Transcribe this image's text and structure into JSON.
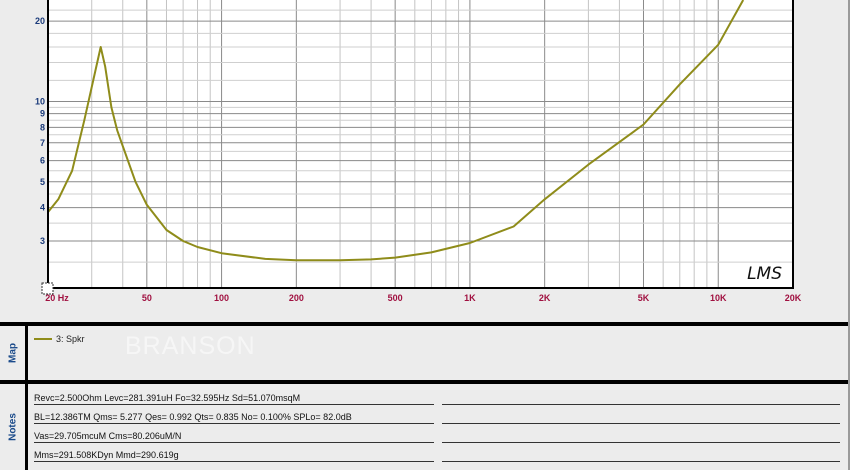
{
  "chart_data": {
    "type": "line",
    "title": "",
    "xlabel": "",
    "ylabel": "",
    "x_scale": "log",
    "y_scale": "log",
    "xlim": [
      20,
      20000
    ],
    "ylim": [
      2,
      24
    ],
    "grid": true,
    "x_ticks": [
      {
        "value": 20,
        "label": "20 Hz"
      },
      {
        "value": 50,
        "label": "50"
      },
      {
        "value": 100,
        "label": "100"
      },
      {
        "value": 200,
        "label": "200"
      },
      {
        "value": 500,
        "label": "500"
      },
      {
        "value": 1000,
        "label": "1K"
      },
      {
        "value": 2000,
        "label": "2K"
      },
      {
        "value": 5000,
        "label": "5K"
      },
      {
        "value": 10000,
        "label": "10K"
      },
      {
        "value": 20000,
        "label": "20K"
      }
    ],
    "y_ticks": [
      {
        "value": 20,
        "label": "20"
      },
      {
        "value": 10,
        "label": "10"
      },
      {
        "value": 9,
        "label": "9"
      },
      {
        "value": 8,
        "label": "8"
      },
      {
        "value": 7,
        "label": "7"
      },
      {
        "value": 6,
        "label": "6"
      },
      {
        "value": 5,
        "label": "5"
      },
      {
        "value": 4,
        "label": "4"
      },
      {
        "value": 3,
        "label": "3"
      }
    ],
    "series": [
      {
        "name": "3: Spkr",
        "color": "#8f8c1a",
        "x": [
          20,
          22,
          25,
          28,
          31,
          32.6,
          34,
          36,
          38,
          40,
          45,
          50,
          60,
          70,
          80,
          100,
          150,
          200,
          300,
          400,
          500,
          700,
          1000,
          1500,
          2000,
          3000,
          5000,
          7000,
          10000,
          12600
        ],
        "y": [
          3.85,
          4.3,
          5.5,
          8.5,
          13,
          16,
          13.5,
          9.5,
          7.8,
          6.8,
          5,
          4.1,
          3.3,
          3.0,
          2.85,
          2.7,
          2.57,
          2.54,
          2.54,
          2.56,
          2.6,
          2.72,
          2.95,
          3.4,
          4.3,
          5.8,
          8.2,
          11.6,
          16.3,
          24
        ]
      }
    ],
    "annotation": "LMS"
  },
  "colors": {
    "x_tick": "#a01040",
    "y_tick": "#1a3a7a",
    "curve": "#8f8c1a"
  },
  "map": {
    "label": "Map",
    "legend_entry": "3: Spkr",
    "watermark": "BRANSON"
  },
  "notes": {
    "label": "Notes",
    "lines": [
      "Revc=2.500Ohm  Levc=281.391uH  Fo=32.595Hz  Sd=51.070msqM",
      "BL=12.386TM  Qms= 5.277  Qes= 0.992  Qts= 0.835  No= 0.100%  SPLo= 82.0dB",
      "Vas=29.705mcuM  Cms=80.206uM/N",
      "Mms=291.508KDyn  Mmd=290.619g"
    ]
  }
}
